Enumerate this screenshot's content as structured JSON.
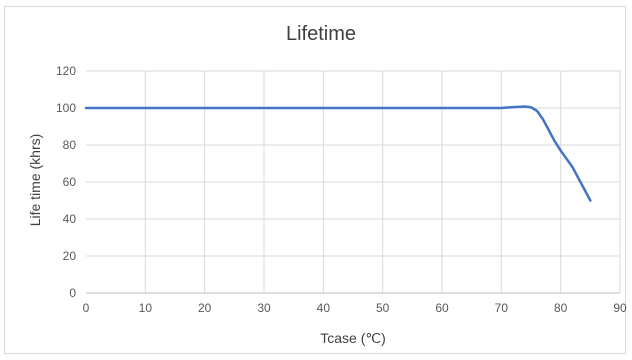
{
  "chart_data": {
    "type": "line",
    "title": "Lifetime",
    "xlabel": "Tcase (℃)",
    "ylabel": "Life time (khrs)",
    "xlim": [
      0,
      90
    ],
    "ylim": [
      0,
      120
    ],
    "xticks": [
      0,
      10,
      20,
      30,
      40,
      50,
      60,
      70,
      80,
      90
    ],
    "yticks": [
      0,
      20,
      40,
      60,
      80,
      100,
      120
    ],
    "grid": true,
    "legend": "none",
    "series_color": "#4472c4",
    "series": [
      {
        "x": [
          0,
          70,
          72,
          74,
          75,
          76,
          77,
          78,
          79,
          80,
          82,
          85
        ],
        "y": [
          100,
          100,
          100.5,
          100.8,
          100.4,
          98.5,
          94,
          88,
          82,
          77,
          68,
          50
        ]
      }
    ]
  }
}
